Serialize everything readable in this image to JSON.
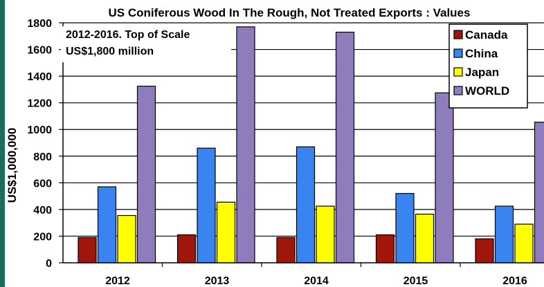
{
  "chart_data": {
    "type": "bar",
    "title": "US Coniferous Wood In The Rough, Not Treated Exports : Values",
    "subtitle_lines": [
      "2012-2016. Top of Scale",
      "US$1,800 million"
    ],
    "ylabel": "US$1,000,000",
    "xlabel": "",
    "ylim": [
      0,
      1800
    ],
    "yticks": [
      "0",
      "200",
      "400",
      "600",
      "800",
      "1000",
      "1200",
      "1400",
      "1600",
      "1800"
    ],
    "categories": [
      "2012",
      "2013",
      "2014",
      "2015",
      "2016"
    ],
    "series": [
      {
        "name": "Canada",
        "color": "#a0160a",
        "values": [
          190,
          210,
          190,
          210,
          180
        ]
      },
      {
        "name": "China",
        "color": "#3a84f2",
        "values": [
          570,
          860,
          870,
          520,
          425
        ]
      },
      {
        "name": "Japan",
        "color": "#ffff00",
        "values": [
          355,
          455,
          425,
          365,
          290
        ]
      },
      {
        "name": "WORLD",
        "color": "#8f7cbd",
        "values": [
          1325,
          1770,
          1730,
          1275,
          1055
        ]
      }
    ],
    "grid": true,
    "legend_position": "top-right"
  }
}
